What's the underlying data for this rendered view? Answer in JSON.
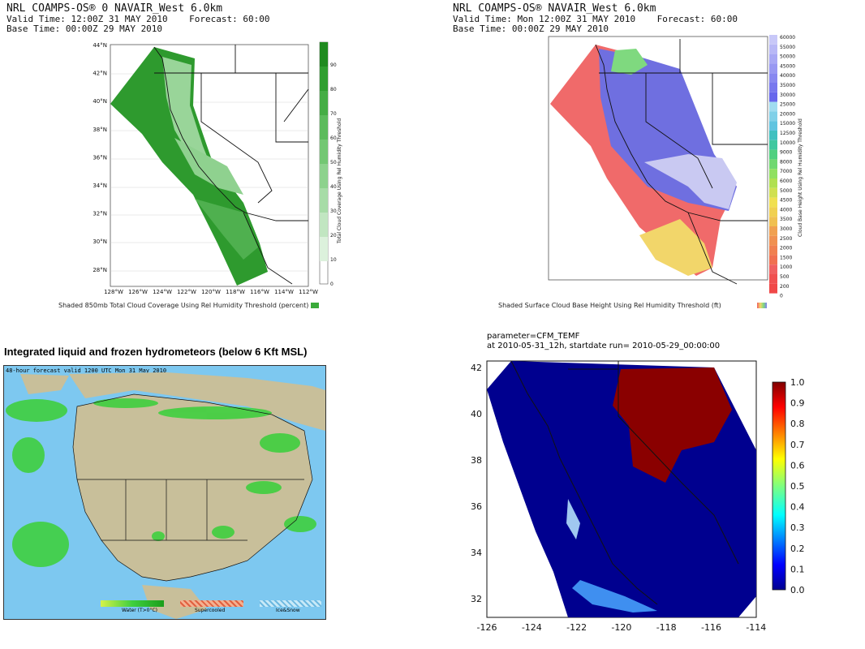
{
  "panel_tl": {
    "header_lines": [
      "NRL COAMPS-OS® 0 NAVAIR_West 6.0km",
      "Valid Time: 12:00Z 31 MAY 2010    Forecast: 60:00",
      "Base Time: 00:00Z 29 MAY 2010"
    ],
    "lat_ticks": [
      "44°N",
      "42°N",
      "40°N",
      "38°N",
      "36°N",
      "34°N",
      "32°N",
      "30°N",
      "28°N"
    ],
    "lon_ticks": [
      "128°W",
      "126°W",
      "124°W",
      "122°W",
      "120°W",
      "118°W",
      "116°W",
      "114°W",
      "112°W"
    ],
    "colorbar_ticks": [
      "90",
      "80",
      "70",
      "60",
      "50",
      "40",
      "30",
      "20",
      "10",
      "0"
    ],
    "colorbar_label": "Total Cloud Coverage Using Rel Humidity Threshold",
    "caption": "Shaded 850mb Total Cloud Coverage Using Rel Humidity Threshold (percent)",
    "colors": {
      "dark": "#2e9a2e",
      "mid": "#6cc46c",
      "light": "#c9ebc9"
    }
  },
  "panel_tr": {
    "header_lines": [
      "NRL COAMPS-OS® NAVAIR_West 6.0km",
      "Valid Time: Mon 12:00Z 31 MAY 2010    Forecast: 60:00",
      "Base Time: 00:00Z 29 MAY 2010"
    ],
    "colorbar_ticks": [
      "60000",
      "55000",
      "50000",
      "45000",
      "40000",
      "35000",
      "30000",
      "25000",
      "20000",
      "15000",
      "12500",
      "10000",
      "9000",
      "8000",
      "7000",
      "6000",
      "5000",
      "4500",
      "4000",
      "3500",
      "3000",
      "2500",
      "2000",
      "1500",
      "1000",
      "500",
      "200",
      "0"
    ],
    "colorbar_label": "Cloud Base Height Using Rel Humidity Threshold",
    "caption": "Shaded Surface Cloud Base Height Using Rel Humidity Threshold (ft)",
    "colors": {
      "ocean": "#f06060",
      "blue": "#6f6fe0",
      "lavender": "#c9c9f2",
      "yellow": "#f2d66a",
      "green": "#7fd97f"
    }
  },
  "panel_bl": {
    "title": "Integrated liquid and frozen hydrometeors (below 6 Kft MSL)",
    "subtitle": "48-hour forecast valid 1200 UTC Mon 31 May 2010",
    "legend": [
      "Water (T>0°C)",
      "Supercooled",
      "Ice&Snow"
    ],
    "colors": {
      "land": "#c8bf9a",
      "ocean": "#7dc8f0",
      "cloud": "#3fcf3f",
      "border": "#111111"
    }
  },
  "panel_br": {
    "title_lines": [
      "parameter=CFM_TEMF",
      "at 2010-05-31_12h, startdate run= 2010-05-29_00:00:00"
    ],
    "y_ticks": [
      "42",
      "40",
      "38",
      "36",
      "34",
      "32"
    ],
    "x_ticks": [
      "-126",
      "-124",
      "-122",
      "-120",
      "-118",
      "-116",
      "-114"
    ],
    "colorbar_ticks": [
      "1.0",
      "0.9",
      "0.8",
      "0.7",
      "0.6",
      "0.5",
      "0.4",
      "0.3",
      "0.2",
      "0.1",
      "0.0"
    ],
    "colors": {
      "field": "#00008f",
      "high": "#8a0000"
    }
  }
}
